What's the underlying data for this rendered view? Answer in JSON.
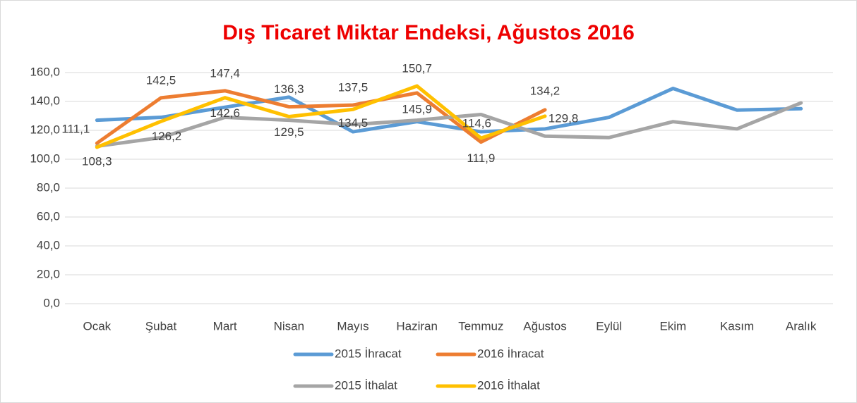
{
  "chart_data": {
    "type": "line",
    "title": "Dış Ticaret Miktar Endeksi, Ağustos 2016",
    "categories": [
      "Ocak",
      "Şubat",
      "Mart",
      "Nisan",
      "Mayıs",
      "Haziran",
      "Temmuz",
      "Ağustos",
      "Eylül",
      "Ekim",
      "Kasım",
      "Aralık"
    ],
    "series": [
      {
        "name": "2015 İhracat",
        "color": "#5b9bd5",
        "values": [
          127,
          129,
          136,
          143,
          119,
          126,
          119,
          121,
          129,
          149,
          134,
          135
        ]
      },
      {
        "name": "2016 İhracat",
        "color": "#ed7d31",
        "values": [
          111.1,
          142.5,
          147.4,
          136.3,
          137.5,
          145.9,
          111.9,
          134.2,
          null,
          null,
          null,
          null
        ],
        "value_labels": [
          "111,1",
          "142,5",
          "147,4",
          "136,3",
          "137,5",
          "145,9",
          "111,9",
          "134,2",
          null,
          null,
          null,
          null
        ]
      },
      {
        "name": "2015 İthalat",
        "color": "#a5a5a5",
        "values": [
          109,
          115,
          129,
          127,
          124,
          127,
          131,
          116,
          115,
          126,
          121,
          139
        ]
      },
      {
        "name": "2016 İthalat",
        "color": "#ffc000",
        "values": [
          108.3,
          126.2,
          142.6,
          129.5,
          134.5,
          150.7,
          114.6,
          129.8,
          null,
          null,
          null,
          null
        ],
        "value_labels": [
          "108,3",
          "126,2",
          "142,6",
          "129,5",
          "134,5",
          "150,7",
          "114,6",
          "129,8",
          null,
          null,
          null,
          null
        ]
      }
    ],
    "ylim": [
      0,
      160
    ],
    "yticks": [
      {
        "value": 0,
        "label": "0,0"
      },
      {
        "value": 20,
        "label": "20,0"
      },
      {
        "value": 40,
        "label": "40,0"
      },
      {
        "value": 60,
        "label": "60,0"
      },
      {
        "value": 80,
        "label": "80,0"
      },
      {
        "value": 100,
        "label": "100,0"
      },
      {
        "value": 120,
        "label": "120,0"
      },
      {
        "value": 140,
        "label": "140,0"
      },
      {
        "value": 160,
        "label": "160,0"
      }
    ],
    "grid": true,
    "legend": "bottom"
  }
}
